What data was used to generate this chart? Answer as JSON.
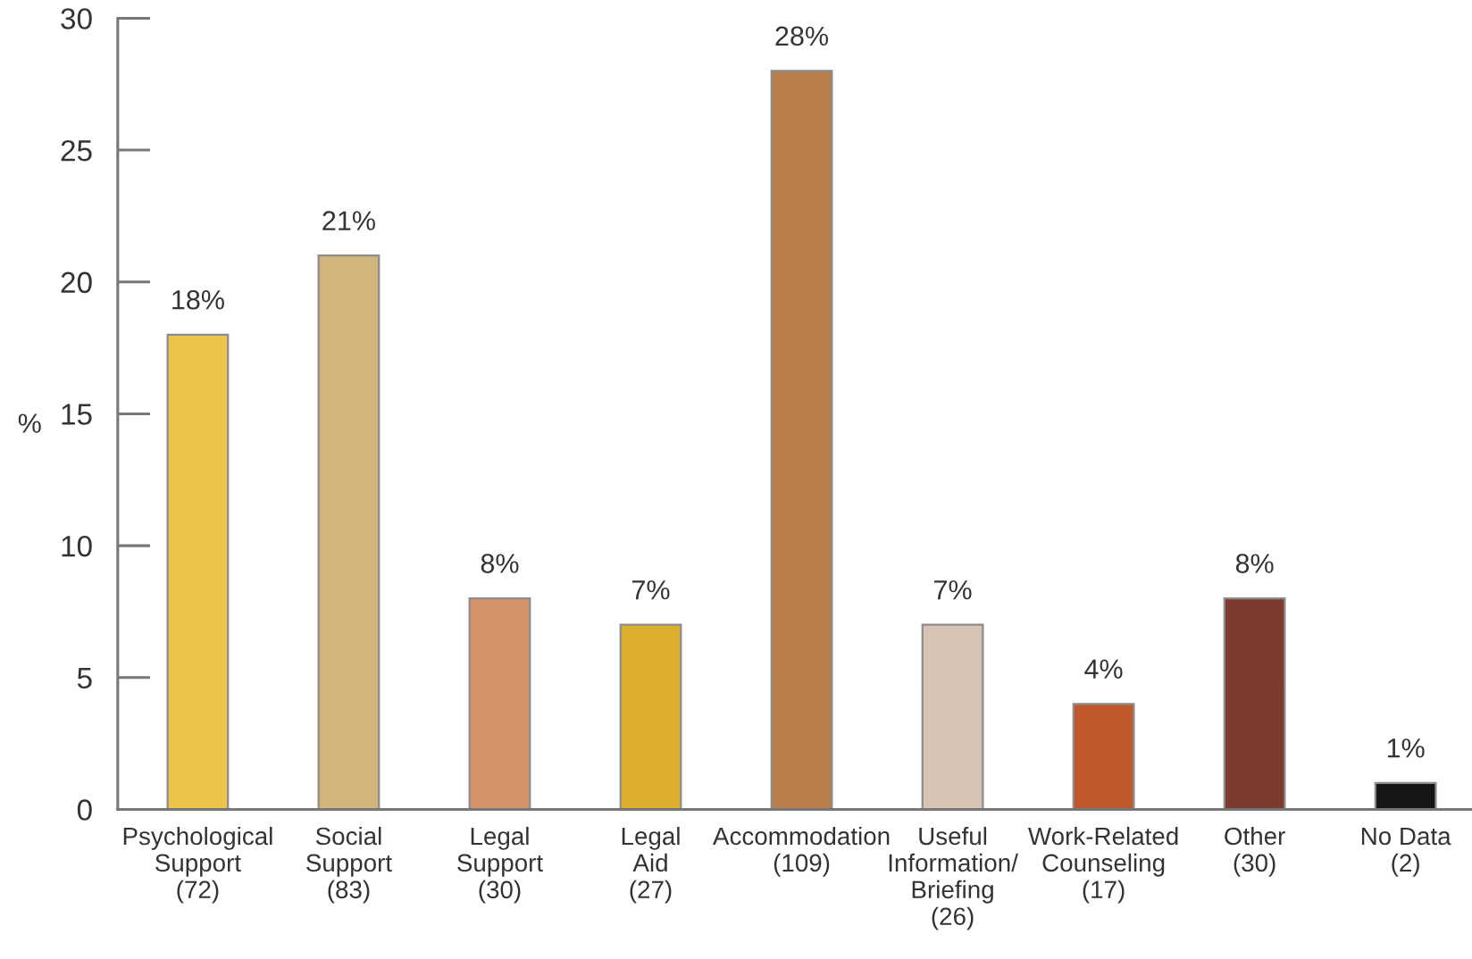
{
  "chart_data": {
    "type": "bar",
    "ylabel": "%",
    "categories": [
      "Psychological\nSupport\n(72)",
      "Social\nSupport\n(83)",
      "Legal\nSupport\n(30)",
      "Legal\nAid\n(27)",
      "Accommodation\n(109)",
      "Useful\nInformation/\nBriefing\n(26)",
      "Work-Related\nCounseling\n(17)",
      "Other\n(30)",
      "No Data\n(2)"
    ],
    "values": [
      18,
      21,
      8,
      7,
      28,
      7,
      4,
      8,
      1
    ],
    "value_labels": [
      "18%",
      "21%",
      "8%",
      "7%",
      "28%",
      "7%",
      "4%",
      "8%",
      "1%"
    ],
    "colors": [
      "#ecc44a",
      "#d3b47a",
      "#d3926a",
      "#dcae2e",
      "#b87f4a",
      "#d8c4b6",
      "#c0582a",
      "#7d3b2f",
      "#161616"
    ],
    "ylim": [
      0,
      30
    ],
    "yticks": [
      0,
      5,
      10,
      15,
      20,
      25,
      30
    ]
  }
}
